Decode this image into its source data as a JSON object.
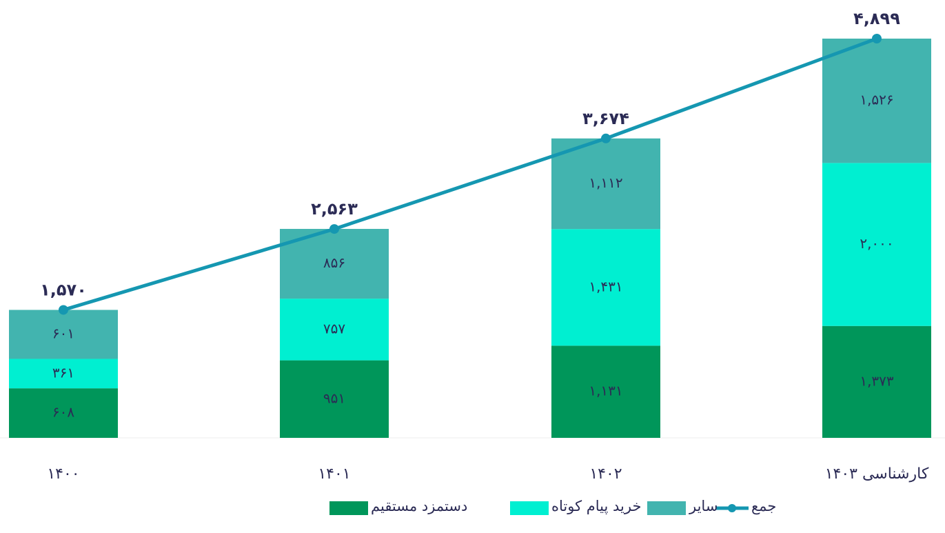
{
  "chart_data": {
    "type": "bar",
    "categories": [
      "۱۴۰۰",
      "۱۴۰۱",
      "۱۴۰۲",
      "کارشناسی ۱۴۰۳"
    ],
    "series": [
      {
        "name": "دستمزد مستقیم",
        "color": "#00965a",
        "values": [
          608,
          951,
          1131,
          1373
        ],
        "value_labels": [
          "۶۰۸",
          "۹۵۱",
          "۱,۱۳۱",
          "۱,۳۷۳"
        ]
      },
      {
        "name": "خرید پیام کوتاه",
        "color": "#00efd1",
        "values": [
          361,
          757,
          1431,
          2000
        ],
        "value_labels": [
          "۳۶۱",
          "۷۵۷",
          "۱,۴۳۱",
          "۲,۰۰۰"
        ]
      },
      {
        "name": "سایر",
        "color": "#42b4af",
        "values": [
          601,
          856,
          1112,
          1526
        ],
        "value_labels": [
          "۶۰۱",
          "۸۵۶",
          "۱,۱۱۲",
          "۱,۵۲۶"
        ]
      },
      {
        "name": "جمع",
        "type": "line",
        "color": "#1597b1",
        "values": [
          1570,
          2563,
          3674,
          4899
        ],
        "value_labels": [
          "۱,۵۷۰",
          "۲,۵۶۳",
          "۳,۶۷۴",
          "۴,۸۹۹"
        ]
      }
    ]
  }
}
